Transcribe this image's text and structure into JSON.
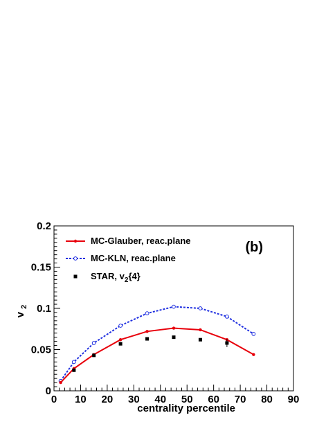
{
  "chart_data": {
    "type": "line",
    "panel_label": "(b)",
    "xlabel": "centrality percentile",
    "ylabel_main": "v",
    "ylabel_sub": "2",
    "xlim": [
      0,
      90
    ],
    "ylim": [
      0,
      0.2
    ],
    "x_ticks": [
      0,
      10,
      20,
      30,
      40,
      50,
      60,
      70,
      80,
      90
    ],
    "x_tick_labels": [
      "0",
      "10",
      "20",
      "30",
      "40",
      "50",
      "60",
      "70",
      "80",
      "90"
    ],
    "y_ticks": [
      0,
      0.05,
      0.1,
      0.15,
      0.2
    ],
    "y_tick_labels": [
      "0",
      "0.05",
      "0.1",
      "0.15",
      "0.2"
    ],
    "grid": false,
    "legend_position": "top-left",
    "series": [
      {
        "name": "MC-Glauber, reac.plane",
        "style": "solid-line-filled-circle",
        "color": "#e8000b",
        "x": [
          2.5,
          7.5,
          15,
          25,
          35,
          45,
          55,
          65,
          75
        ],
        "y": [
          0.01,
          0.027,
          0.044,
          0.062,
          0.072,
          0.076,
          0.074,
          0.062,
          0.044
        ]
      },
      {
        "name": "MC-KLN, reac.plane",
        "style": "dashed-line-open-circle",
        "color": "#1f2fe0",
        "x": [
          2.5,
          7.5,
          15,
          25,
          35,
          45,
          55,
          65,
          75
        ],
        "y": [
          0.012,
          0.035,
          0.058,
          0.079,
          0.094,
          0.102,
          0.1,
          0.09,
          0.069
        ]
      },
      {
        "name_main": "STAR, v",
        "name_sub": "2",
        "name_tail": "{4}",
        "style": "black-square-markers",
        "color": "#000000",
        "x": [
          7.5,
          15,
          25,
          35,
          45,
          55,
          65
        ],
        "y": [
          0.025,
          0.043,
          0.057,
          0.063,
          0.065,
          0.062,
          0.058
        ],
        "yerr": [
          0.001,
          0.001,
          0.001,
          0.001,
          0.001,
          0.001,
          0.005
        ]
      }
    ]
  }
}
